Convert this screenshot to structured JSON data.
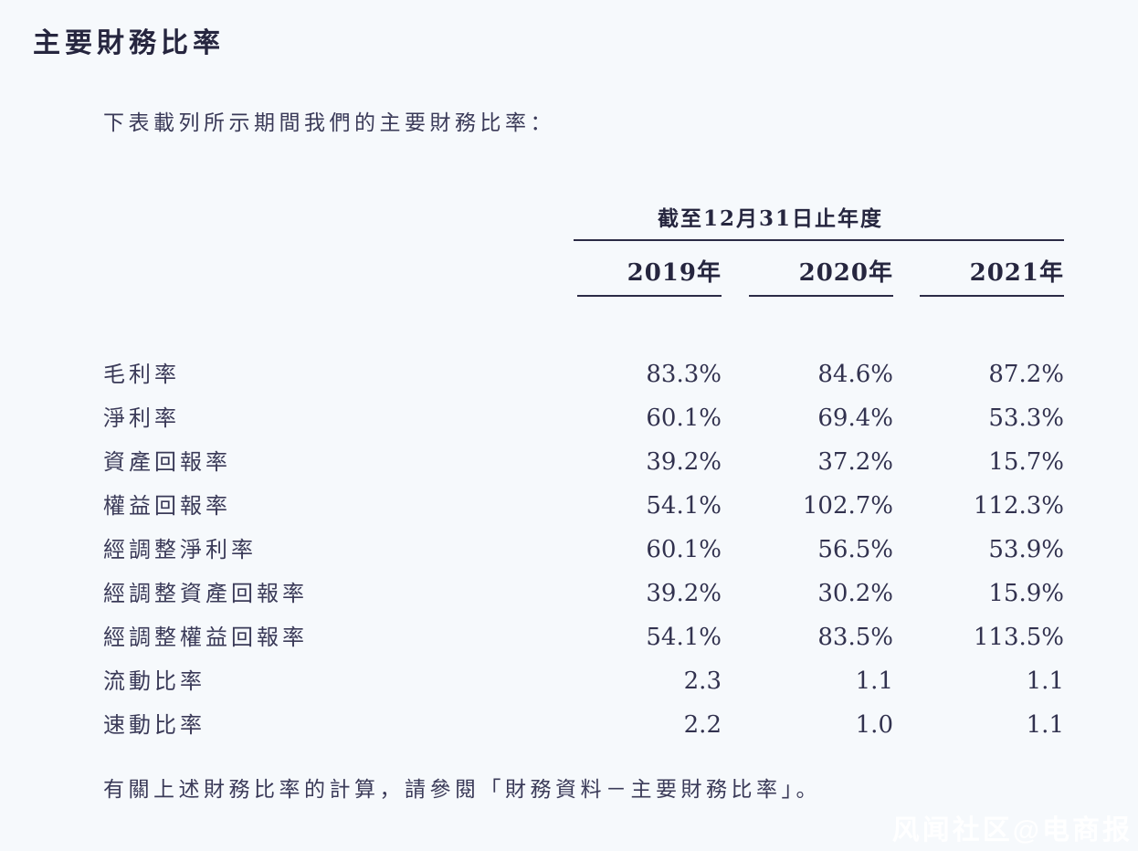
{
  "page": {
    "title": "主要財務比率",
    "intro": "下表載列所示期間我們的主要財務比率：",
    "footer": "有關上述財務比率的計算，請參閱「財務資料－主要財務比率」。",
    "watermark": "风闻社区@电商报"
  },
  "table": {
    "period_header": "截至12月31日止年度",
    "columns": [
      "2019年",
      "2020年",
      "2021年"
    ],
    "rows": [
      {
        "label": "毛利率",
        "values": [
          "83.3%",
          "84.6%",
          "87.2%"
        ]
      },
      {
        "label": "淨利率",
        "values": [
          "60.1%",
          "69.4%",
          "53.3%"
        ]
      },
      {
        "label": "資產回報率",
        "values": [
          "39.2%",
          "37.2%",
          "15.7%"
        ]
      },
      {
        "label": "權益回報率",
        "values": [
          "54.1%",
          "102.7%",
          "112.3%"
        ]
      },
      {
        "label": "經調整淨利率",
        "values": [
          "60.1%",
          "56.5%",
          "53.9%"
        ]
      },
      {
        "label": "經調整資產回報率",
        "values": [
          "39.2%",
          "30.2%",
          "15.9%"
        ]
      },
      {
        "label": "經調整權益回報率",
        "values": [
          "54.1%",
          "83.5%",
          "113.5%"
        ]
      },
      {
        "label": "流動比率",
        "values": [
          "2.3",
          "1.1",
          "1.1"
        ]
      },
      {
        "label": "速動比率",
        "values": [
          "2.2",
          "1.0",
          "1.1"
        ]
      }
    ]
  },
  "colors": {
    "background": "#f6f9fc",
    "text": "#3a3a58",
    "heading": "#26263f",
    "rule_line": "#2b2b46",
    "watermark": "#ffffff"
  }
}
